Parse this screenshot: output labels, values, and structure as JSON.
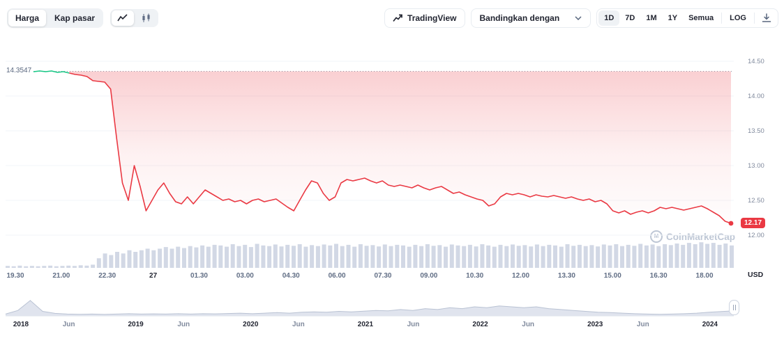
{
  "toolbar": {
    "metric_tabs": [
      {
        "label": "Harga",
        "selected": true
      },
      {
        "label": "Kap pasar",
        "selected": false
      }
    ],
    "tradingview_label": "TradingView",
    "compare_label": "Bandingkan dengan",
    "ranges": [
      {
        "label": "1D",
        "selected": true
      },
      {
        "label": "7D",
        "selected": false
      },
      {
        "label": "1M",
        "selected": false
      },
      {
        "label": "1Y",
        "selected": false
      },
      {
        "label": "Semua",
        "selected": false
      }
    ],
    "log_label": "LOG"
  },
  "axis": {
    "currency_label": "USD"
  },
  "watermark": {
    "text": "CoinMarketCap"
  },
  "colors": {
    "up": "#16c784",
    "down": "#ea3943",
    "volume": "#d2d8e5",
    "grid": "#f2f4f8",
    "baseline": "#8c96aa",
    "navigator_fill": "#e0e4ee",
    "navigator_stroke": "#b9c2d3"
  },
  "chart_data": [
    {
      "type": "line",
      "name": "price-intraday-1d",
      "ylabel": "USD",
      "ylim": [
        11.95,
        14.62
      ],
      "y_ticks": [
        14.5,
        14.0,
        13.5,
        13.0,
        12.5,
        12.0
      ],
      "previous_close": 14.3547,
      "previous_close_label": "14.3547",
      "last_price": 12.17,
      "last_price_label": "12.17",
      "green_until_index": 7,
      "x_labels": [
        "19.30",
        "21.00",
        "22.30",
        "27",
        "01.30",
        "03.00",
        "04.30",
        "06.00",
        "07.30",
        "09.00",
        "10.30",
        "12.00",
        "13.30",
        "15.00",
        "16.30",
        "18.00"
      ],
      "bold_x_labels": [
        "27"
      ],
      "prices": [
        14.33,
        14.35,
        14.36,
        14.35,
        14.36,
        14.34,
        14.35,
        14.33,
        14.31,
        14.3,
        14.28,
        14.22,
        14.21,
        14.2,
        14.1,
        13.4,
        12.75,
        12.5,
        13.0,
        12.7,
        12.35,
        12.5,
        12.65,
        12.75,
        12.6,
        12.48,
        12.45,
        12.55,
        12.45,
        12.55,
        12.65,
        12.6,
        12.55,
        12.5,
        12.52,
        12.48,
        12.5,
        12.45,
        12.5,
        12.52,
        12.48,
        12.5,
        12.52,
        12.46,
        12.4,
        12.35,
        12.5,
        12.65,
        12.78,
        12.75,
        12.6,
        12.5,
        12.55,
        12.75,
        12.8,
        12.78,
        12.8,
        12.82,
        12.78,
        12.75,
        12.78,
        12.72,
        12.7,
        12.72,
        12.7,
        12.68,
        12.72,
        12.68,
        12.65,
        12.68,
        12.7,
        12.65,
        12.6,
        12.62,
        12.58,
        12.55,
        12.52,
        12.5,
        12.42,
        12.45,
        12.55,
        12.6,
        12.58,
        12.6,
        12.58,
        12.55,
        12.58,
        12.56,
        12.55,
        12.57,
        12.55,
        12.53,
        12.55,
        12.52,
        12.5,
        12.52,
        12.48,
        12.5,
        12.45,
        12.35,
        12.32,
        12.35,
        12.3,
        12.33,
        12.35,
        12.32,
        12.35,
        12.4,
        12.38,
        12.4,
        12.38,
        12.36,
        12.38,
        12.4,
        12.42,
        12.38,
        12.33,
        12.28,
        12.2,
        12.17
      ],
      "volume_rel": [
        0.06,
        0.05,
        0.07,
        0.05,
        0.06,
        0.05,
        0.06,
        0.07,
        0.05,
        0.06,
        0.07,
        0.06,
        0.08,
        0.07,
        0.1,
        0.3,
        0.45,
        0.4,
        0.5,
        0.45,
        0.55,
        0.5,
        0.55,
        0.6,
        0.55,
        0.6,
        0.65,
        0.6,
        0.66,
        0.62,
        0.68,
        0.64,
        0.7,
        0.66,
        0.72,
        0.7,
        0.66,
        0.74,
        0.68,
        0.72,
        0.65,
        0.75,
        0.7,
        0.68,
        0.73,
        0.67,
        0.72,
        0.69,
        0.74,
        0.66,
        0.71,
        0.68,
        0.73,
        0.7,
        0.75,
        0.68,
        0.72,
        0.66,
        0.74,
        0.69,
        0.71,
        0.67,
        0.73,
        0.68,
        0.72,
        0.7,
        0.66,
        0.72,
        0.68,
        0.74,
        0.69,
        0.71,
        0.66,
        0.73,
        0.7,
        0.68,
        0.72,
        0.67,
        0.74,
        0.7,
        0.66,
        0.72,
        0.68,
        0.73,
        0.69,
        0.71,
        0.67,
        0.73,
        0.68,
        0.72,
        0.7,
        0.66,
        0.74,
        0.69,
        0.72,
        0.68,
        0.71,
        0.67,
        0.73,
        0.7,
        0.74,
        0.68,
        0.72,
        0.69,
        0.75,
        0.7,
        0.73,
        0.68,
        0.74,
        0.71,
        0.76,
        0.72,
        0.78,
        0.74,
        0.8,
        0.75,
        0.78,
        0.72,
        0.76,
        0.7
      ]
    },
    {
      "type": "area",
      "name": "navigator-history",
      "x_labels": [
        {
          "label": "2018",
          "bold": true
        },
        {
          "label": "Jun",
          "bold": false
        },
        {
          "label": "2019",
          "bold": true
        },
        {
          "label": "Jun",
          "bold": false
        },
        {
          "label": "2020",
          "bold": true
        },
        {
          "label": "Jun",
          "bold": false
        },
        {
          "label": "2021",
          "bold": true
        },
        {
          "label": "Jun",
          "bold": false
        },
        {
          "label": "2022",
          "bold": true
        },
        {
          "label": "Jun",
          "bold": false
        },
        {
          "label": "2023",
          "bold": true
        },
        {
          "label": "Jun",
          "bold": false
        },
        {
          "label": "2024",
          "bold": true
        }
      ],
      "values": [
        0.1,
        0.3,
        0.85,
        0.25,
        0.14,
        0.1,
        0.09,
        0.1,
        0.08,
        0.1,
        0.12,
        0.1,
        0.11,
        0.1,
        0.12,
        0.1,
        0.12,
        0.11,
        0.13,
        0.15,
        0.12,
        0.15,
        0.18,
        0.15,
        0.2,
        0.22,
        0.2,
        0.25,
        0.22,
        0.26,
        0.3,
        0.28,
        0.35,
        0.3,
        0.4,
        0.35,
        0.45,
        0.4,
        0.5,
        0.45,
        0.55,
        0.5,
        0.45,
        0.5,
        0.4,
        0.35,
        0.3,
        0.25,
        0.2,
        0.18,
        0.15,
        0.12,
        0.1,
        0.09,
        0.1,
        0.12,
        0.15,
        0.2,
        0.24,
        0.28
      ]
    }
  ]
}
